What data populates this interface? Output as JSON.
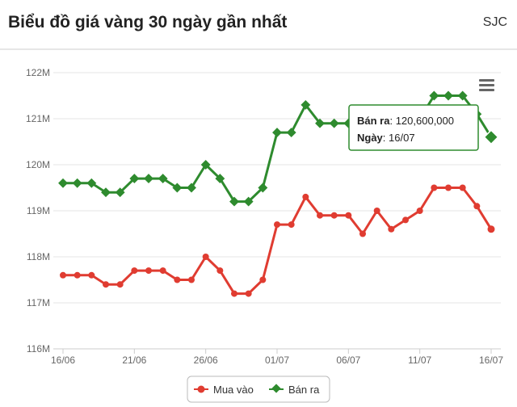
{
  "header": {
    "title": "Biểu đồ giá vàng 30 ngày gần nhất",
    "source": "SJC"
  },
  "menu": {
    "icon": "hamburger-menu-icon"
  },
  "tooltip": {
    "line1_label": "Bán ra",
    "line1_value": "120,600,000",
    "line2_label": "Ngày",
    "line2_value": "16/07"
  },
  "chart_data": {
    "type": "line",
    "x": [
      "16/06",
      "17/06",
      "18/06",
      "19/06",
      "20/06",
      "21/06",
      "22/06",
      "23/06",
      "24/06",
      "25/06",
      "26/06",
      "27/06",
      "28/06",
      "29/06",
      "30/06",
      "01/07",
      "02/07",
      "03/07",
      "04/07",
      "05/07",
      "06/07",
      "07/07",
      "08/07",
      "09/07",
      "10/07",
      "11/07",
      "12/07",
      "13/07",
      "14/07",
      "15/07",
      "16/07"
    ],
    "x_tick_labels": [
      "16/06",
      "21/06",
      "26/06",
      "01/07",
      "06/07",
      "11/07",
      "16/07"
    ],
    "y_tick_labels": [
      "116M",
      "117M",
      "118M",
      "119M",
      "120M",
      "121M",
      "122M"
    ],
    "ylim": [
      116,
      122
    ],
    "unit": "M",
    "grid": true,
    "legend_position": "bottom-center",
    "series": [
      {
        "name": "Mua vào",
        "color": "#e03c31",
        "values": [
          117.6,
          117.6,
          117.6,
          117.4,
          117.4,
          117.7,
          117.7,
          117.7,
          117.5,
          117.5,
          118.0,
          117.7,
          117.2,
          117.2,
          117.5,
          118.7,
          118.7,
          119.3,
          118.9,
          118.9,
          118.9,
          118.5,
          119.0,
          118.6,
          118.8,
          119.0,
          119.5,
          119.5,
          119.5,
          119.1,
          118.6
        ]
      },
      {
        "name": "Bán ra",
        "color": "#2e8b2e",
        "values": [
          119.6,
          119.6,
          119.6,
          119.4,
          119.4,
          119.7,
          119.7,
          119.7,
          119.5,
          119.5,
          120.0,
          119.7,
          119.2,
          119.2,
          119.5,
          120.7,
          120.7,
          121.3,
          120.9,
          120.9,
          120.9,
          120.5,
          121.0,
          120.6,
          120.8,
          121.0,
          121.5,
          121.5,
          121.5,
          121.1,
          120.6
        ]
      }
    ]
  }
}
